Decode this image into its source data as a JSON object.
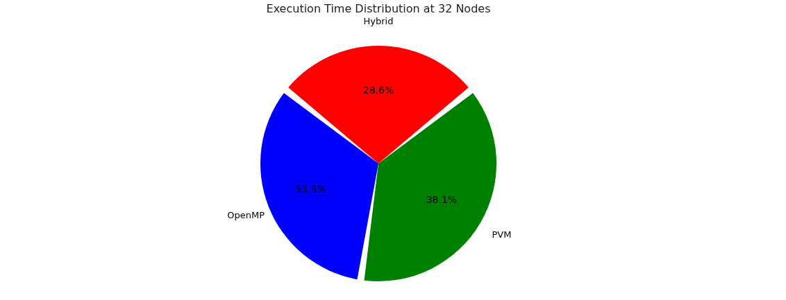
{
  "chart_data": {
    "type": "pie",
    "title": "Execution Time Distribution at 32 Nodes",
    "categories": [
      "Hybrid",
      "OpenMP",
      "PVM"
    ],
    "values": [
      28.6,
      33.3,
      38.1
    ],
    "colors": [
      "#ff0000",
      "#0000ff",
      "#008000"
    ],
    "value_labels": [
      "28.6%",
      "33.3%",
      "38.1%"
    ]
  }
}
